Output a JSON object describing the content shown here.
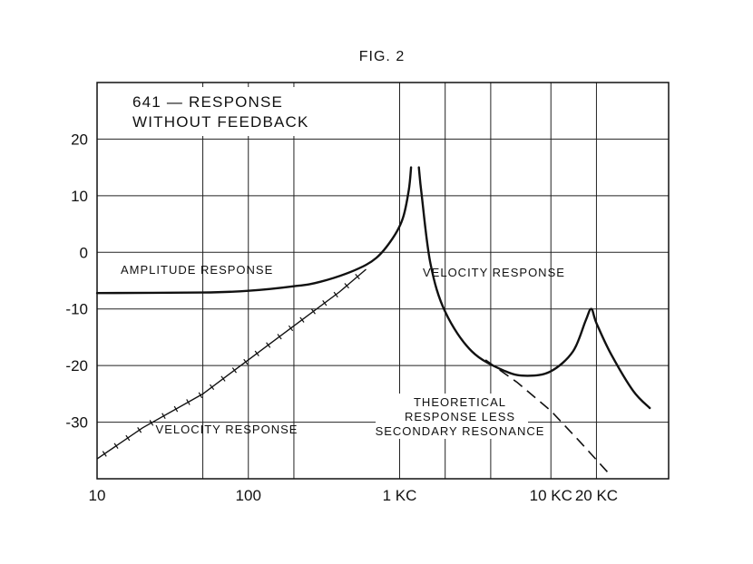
{
  "figure_label": "FIG. 2",
  "chart_data": {
    "type": "line",
    "title_lines": [
      "641 — RESPONSE",
      "WITHOUT FEEDBACK"
    ],
    "xscale": "log",
    "xlim": [
      10,
      60000
    ],
    "ylim": [
      -40,
      30
    ],
    "grid": true,
    "x_tick_values": [
      10,
      100,
      1000,
      10000,
      20000
    ],
    "x_tick_labels": [
      "10",
      "100",
      "1 KC",
      "10 KC",
      "20 KC"
    ],
    "x_grid_values": [
      10,
      50,
      100,
      200,
      1000,
      2000,
      4000,
      10000,
      20000,
      60000
    ],
    "y_ticks": [
      20,
      10,
      0,
      -10,
      -20,
      -30
    ],
    "y_tick_labels": [
      "20",
      "10",
      "0",
      "-10",
      "-20",
      "-30"
    ],
    "series": [
      {
        "name": "AMPLITUDE RESPONSE",
        "style": "solid",
        "points": [
          [
            10,
            -7.2
          ],
          [
            50,
            -7.1
          ],
          [
            100,
            -6.8
          ],
          [
            200,
            -6.0
          ],
          [
            300,
            -5.2
          ],
          [
            500,
            -3.2
          ],
          [
            700,
            -1.0
          ],
          [
            900,
            2.5
          ],
          [
            1050,
            6.0
          ],
          [
            1150,
            11.0
          ],
          [
            1190,
            15.0
          ]
        ]
      },
      {
        "name": "VELOCITY RESPONSE",
        "style": "solid",
        "points": [
          [
            1340,
            15.0
          ],
          [
            1400,
            10.0
          ],
          [
            1600,
            -2.0
          ],
          [
            2000,
            -10.5
          ],
          [
            3000,
            -17.5
          ],
          [
            5000,
            -21.0
          ],
          [
            7000,
            -21.8
          ],
          [
            10000,
            -21.0
          ],
          [
            14000,
            -17.5
          ],
          [
            17000,
            -12.0
          ],
          [
            18500,
            -10.0
          ],
          [
            20000,
            -12.5
          ],
          [
            25000,
            -18.0
          ],
          [
            35000,
            -24.5
          ],
          [
            45000,
            -27.5
          ]
        ]
      },
      {
        "name": "VELOCITY RESPONSE",
        "style": "crossed",
        "points": [
          [
            10,
            -36.5
          ],
          [
            20,
            -31.0
          ],
          [
            50,
            -25.0
          ],
          [
            100,
            -19.0
          ],
          [
            200,
            -13.0
          ],
          [
            400,
            -7.0
          ],
          [
            600,
            -3.0
          ]
        ]
      },
      {
        "name": "THEORETICAL RESPONSE LESS SECONDARY RESONANCE",
        "style": "dashed",
        "points": [
          [
            3700,
            -19.0
          ],
          [
            6000,
            -23.0
          ],
          [
            10000,
            -28.0
          ],
          [
            15000,
            -33.0
          ],
          [
            25000,
            -39.5
          ]
        ]
      }
    ],
    "annotations": [
      {
        "id": "amplitude",
        "lines": [
          "AMPLITUDE RESPONSE"
        ]
      },
      {
        "id": "velocity-high",
        "lines": [
          "VELOCITY RESPONSE"
        ]
      },
      {
        "id": "velocity-low",
        "lines": [
          "VELOCITY RESPONSE"
        ]
      },
      {
        "id": "theoretical",
        "lines": [
          "THEORETICAL",
          "RESPONSE LESS",
          "SECONDARY RESONANCE"
        ]
      }
    ]
  }
}
